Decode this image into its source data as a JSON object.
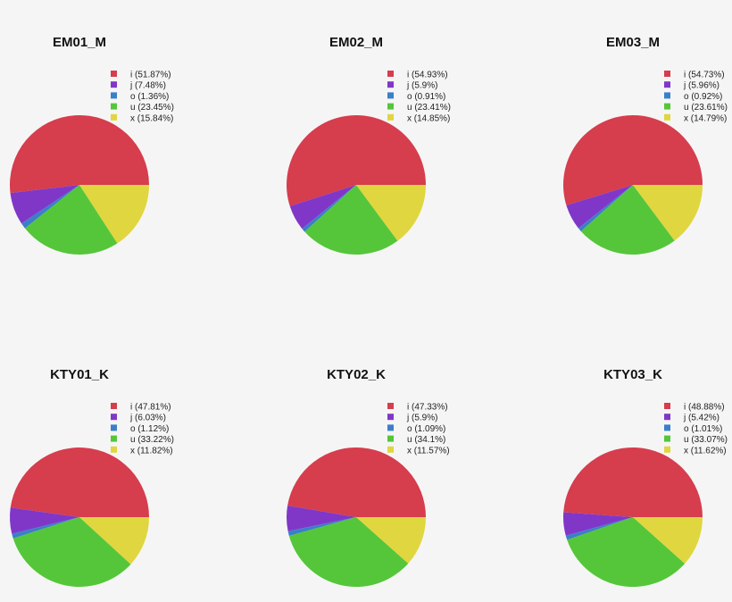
{
  "colors": {
    "i": "#d63d4d",
    "j": "#8037c8",
    "o": "#3b7fc9",
    "u": "#55c63a",
    "x": "#e0d63f",
    "background": "#f5f5f5"
  },
  "chart_data": [
    {
      "type": "pie",
      "title": "EM01_M",
      "labels": [
        "i",
        "j",
        "o",
        "u",
        "x"
      ],
      "values": [
        51.87,
        7.48,
        1.36,
        23.45,
        15.84
      ],
      "legend_entries": [
        "i (51.87%)",
        "j (7.48%)",
        "o (1.36%)",
        "u (23.45%)",
        "x (15.84%)"
      ],
      "legend_position": "top-right"
    },
    {
      "type": "pie",
      "title": "EM02_M",
      "labels": [
        "i",
        "j",
        "o",
        "u",
        "x"
      ],
      "values": [
        54.93,
        5.9,
        0.91,
        23.41,
        14.85
      ],
      "legend_entries": [
        "i (54.93%)",
        "j (5.9%)",
        "o (0.91%)",
        "u (23.41%)",
        "x (14.85%)"
      ],
      "legend_position": "top-right"
    },
    {
      "type": "pie",
      "title": "EM03_M",
      "labels": [
        "i",
        "j",
        "o",
        "u",
        "x"
      ],
      "values": [
        54.73,
        5.96,
        0.92,
        23.61,
        14.79
      ],
      "legend_entries": [
        "i (54.73%)",
        "j (5.96%)",
        "o (0.92%)",
        "u (23.61%)",
        "x (14.79%)"
      ],
      "legend_position": "top-right"
    },
    {
      "type": "pie",
      "title": "KTY01_K",
      "labels": [
        "i",
        "j",
        "o",
        "u",
        "x"
      ],
      "values": [
        47.81,
        6.03,
        1.12,
        33.22,
        11.82
      ],
      "legend_entries": [
        "i (47.81%)",
        "j (6.03%)",
        "o (1.12%)",
        "u (33.22%)",
        "x (11.82%)"
      ],
      "legend_position": "top-right"
    },
    {
      "type": "pie",
      "title": "KTY02_K",
      "labels": [
        "i",
        "j",
        "o",
        "u",
        "x"
      ],
      "values": [
        47.33,
        5.9,
        1.09,
        34.1,
        11.57
      ],
      "legend_entries": [
        "i (47.33%)",
        "j (5.9%)",
        "o (1.09%)",
        "u (34.1%)",
        "x (11.57%)"
      ],
      "legend_position": "top-right"
    },
    {
      "type": "pie",
      "title": "KTY03_K",
      "labels": [
        "i",
        "j",
        "o",
        "u",
        "x"
      ],
      "values": [
        48.88,
        5.42,
        1.01,
        33.07,
        11.62
      ],
      "legend_entries": [
        "i (48.88%)",
        "j (5.42%)",
        "o (1.01%)",
        "u (33.07%)",
        "x (11.62%)"
      ],
      "legend_position": "top-right"
    }
  ]
}
